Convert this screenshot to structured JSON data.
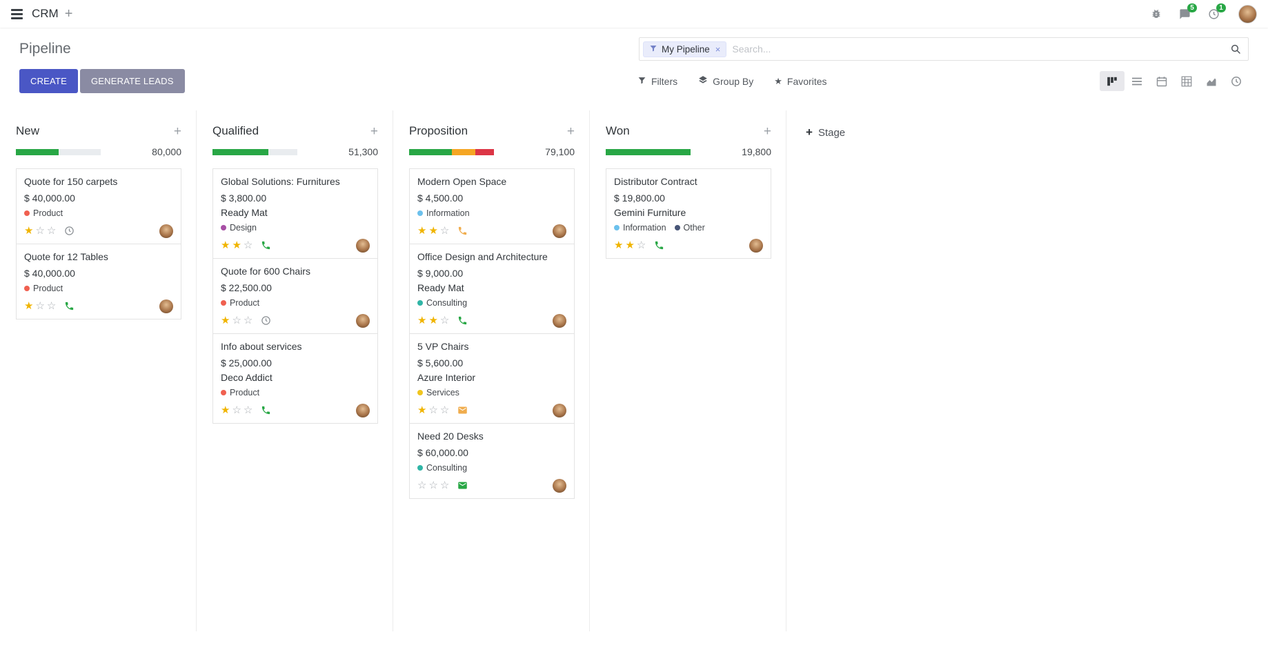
{
  "topbar": {
    "app_name": "CRM",
    "messages_badge": "5",
    "activities_badge": "1"
  },
  "control_panel": {
    "title": "Pipeline",
    "create_label": "CREATE",
    "generate_leads_label": "GENERATE LEADS",
    "search": {
      "facet_label": "My Pipeline",
      "placeholder": "Search..."
    },
    "filters_label": "Filters",
    "group_by_label": "Group By",
    "favorites_label": "Favorites",
    "view_switcher": {
      "active": "kanban",
      "views": [
        "kanban",
        "list",
        "calendar",
        "pivot",
        "graph",
        "activity"
      ]
    }
  },
  "colors": {
    "primary_button": "#4a57c5",
    "secondary_button": "#8a8ba3",
    "progress_success": "#28a745",
    "progress_warning": "#f5a623",
    "progress_danger": "#dc3545",
    "star_filled": "#f0b400",
    "badge_green": "#28a745"
  },
  "board": {
    "add_stage_label": "Stage",
    "columns": [
      {
        "name": "New",
        "total": "80,000",
        "progress": [
          {
            "color": "#28a745",
            "pct": 50
          }
        ],
        "cards": [
          {
            "title": "Quote for 150 carpets",
            "amount": "$ 40,000.00",
            "partner": "",
            "tags": [
              {
                "label": "Product",
                "color": "#f06050"
              }
            ],
            "stars": 1,
            "activity": {
              "icon": "clock",
              "color": "#8a8f94"
            }
          },
          {
            "title": "Quote for 12 Tables",
            "amount": "$ 40,000.00",
            "partner": "",
            "tags": [
              {
                "label": "Product",
                "color": "#f06050"
              }
            ],
            "stars": 1,
            "activity": {
              "icon": "phone",
              "color": "#28a745"
            }
          }
        ]
      },
      {
        "name": "Qualified",
        "total": "51,300",
        "progress": [
          {
            "color": "#28a745",
            "pct": 66
          }
        ],
        "cards": [
          {
            "title": "Global Solutions: Furnitures",
            "amount": "$ 3,800.00",
            "partner": "Ready Mat",
            "tags": [
              {
                "label": "Design",
                "color": "#a74fa5"
              }
            ],
            "stars": 2,
            "activity": {
              "icon": "phone",
              "color": "#28a745"
            }
          },
          {
            "title": "Quote for 600 Chairs",
            "amount": "$ 22,500.00",
            "partner": "",
            "tags": [
              {
                "label": "Product",
                "color": "#f06050"
              }
            ],
            "stars": 1,
            "activity": {
              "icon": "clock",
              "color": "#8a8f94"
            }
          },
          {
            "title": "Info about services",
            "amount": "$ 25,000.00",
            "partner": "Deco Addict",
            "tags": [
              {
                "label": "Product",
                "color": "#f06050"
              }
            ],
            "stars": 1,
            "activity": {
              "icon": "phone",
              "color": "#28a745"
            }
          }
        ]
      },
      {
        "name": "Proposition",
        "total": "79,100",
        "progress": [
          {
            "color": "#28a745",
            "pct": 50
          },
          {
            "color": "#f5a623",
            "pct": 28
          },
          {
            "color": "#dc3545",
            "pct": 22
          }
        ],
        "cards": [
          {
            "title": "Modern Open Space",
            "amount": "$ 4,500.00",
            "partner": "",
            "tags": [
              {
                "label": "Information",
                "color": "#6cc1ed"
              }
            ],
            "stars": 2,
            "activity": {
              "icon": "phone",
              "color": "#f0ad4e"
            }
          },
          {
            "title": "Office Design and Architecture",
            "amount": "$ 9,000.00",
            "partner": "Ready Mat",
            "tags": [
              {
                "label": "Consulting",
                "color": "#30b5a6"
              }
            ],
            "stars": 2,
            "activity": {
              "icon": "phone",
              "color": "#28a745"
            }
          },
          {
            "title": "5 VP Chairs",
            "amount": "$ 5,600.00",
            "partner": "Azure Interior",
            "tags": [
              {
                "label": "Services",
                "color": "#f0c51f"
              }
            ],
            "stars": 1,
            "activity": {
              "icon": "envelope",
              "color": "#f0ad4e"
            }
          },
          {
            "title": "Need 20 Desks",
            "amount": "$ 60,000.00",
            "partner": "",
            "tags": [
              {
                "label": "Consulting",
                "color": "#30b5a6"
              }
            ],
            "stars": 0,
            "activity": {
              "icon": "envelope",
              "color": "#28a745"
            }
          }
        ]
      },
      {
        "name": "Won",
        "total": "19,800",
        "progress": [
          {
            "color": "#28a745",
            "pct": 100
          }
        ],
        "cards": [
          {
            "title": "Distributor Contract",
            "amount": "$ 19,800.00",
            "partner": "Gemini Furniture",
            "tags": [
              {
                "label": "Information",
                "color": "#6cc1ed"
              },
              {
                "label": "Other",
                "color": "#475577"
              }
            ],
            "stars": 2,
            "activity": {
              "icon": "phone",
              "color": "#28a745"
            }
          }
        ]
      }
    ]
  }
}
